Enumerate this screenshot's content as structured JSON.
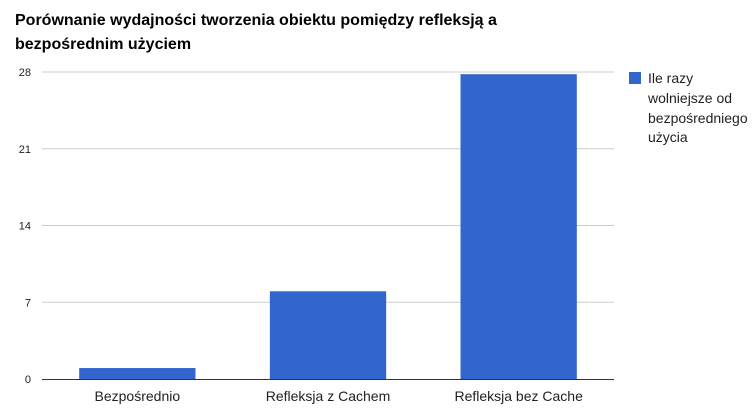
{
  "chart_data": {
    "type": "bar",
    "title_lines": [
      "Porównanie wydajności tworzenia obiektu pomiędzy refleksją a",
      "bezpośrednim użyciem"
    ],
    "categories": [
      "Bezpośrednio",
      "Refleksja z Cachem",
      "Refleksja bez Cache"
    ],
    "series": [
      {
        "name_lines": [
          "Ile razy",
          "wolniejsze od",
          "bezpośredniego",
          "użycia"
        ],
        "values": [
          1,
          8,
          27.8
        ],
        "color": "#3366cc"
      }
    ],
    "yticks": [
      "0",
      "7",
      "14",
      "21",
      "28"
    ],
    "ylim": [
      0,
      28
    ],
    "grid": true,
    "legend_position": "right"
  }
}
